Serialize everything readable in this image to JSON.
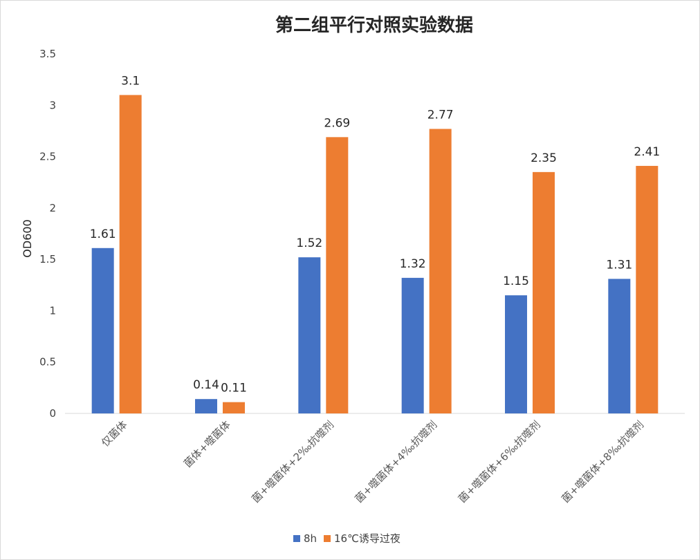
{
  "chart_data": {
    "type": "bar",
    "title": "第二组平行对照实验数据",
    "ylabel": "OD600",
    "xlabel": "",
    "ylim": [
      0,
      3.5
    ],
    "yticks": [
      "0",
      "0.5",
      "1",
      "1.5",
      "2",
      "2.5",
      "3",
      "3.5"
    ],
    "categories": [
      "仅菌体",
      "菌体+噬菌体",
      "菌+噬菌体+2‰抗噬剂",
      "菌+噬菌体+4‰抗噬剂",
      "菌+噬菌体+6‰抗噬剂",
      "菌+噬菌体+8‰抗噬剂"
    ],
    "series": [
      {
        "name": "8h",
        "color": "#4472c4",
        "values": [
          1.61,
          0.14,
          1.52,
          1.32,
          1.15,
          1.31
        ],
        "labels": [
          "1.61",
          "0.14",
          "1.52",
          "1.32",
          "1.15",
          "1.31"
        ]
      },
      {
        "name": "16℃诱导过夜",
        "color": "#ed7d31",
        "values": [
          3.1,
          0.11,
          2.69,
          2.77,
          2.35,
          2.41
        ],
        "labels": [
          "3.1",
          "0.11",
          "2.69",
          "2.77",
          "2.35",
          "2.41"
        ]
      }
    ],
    "grid": false,
    "legend_position": "bottom"
  }
}
